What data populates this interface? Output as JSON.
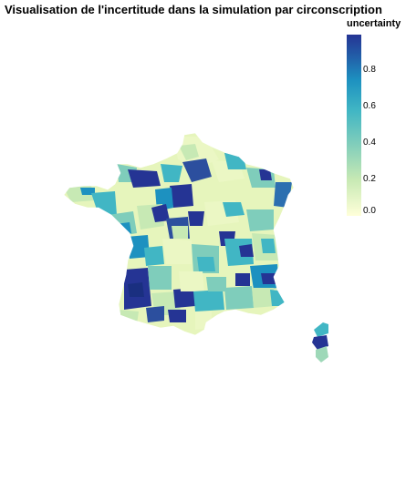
{
  "title": "Visualisation de l'incertitude dans la simulation par circonscription",
  "legend": {
    "title": "uncertainty",
    "ticks": [
      "0.8",
      "0.6",
      "0.4",
      "0.2",
      "0.0"
    ],
    "range": [
      0.0,
      0.97
    ],
    "colors": [
      "#ffffd9",
      "#c7e9b4",
      "#7fcdbb",
      "#41b6c4",
      "#1d91c0",
      "#225ea8",
      "#253494"
    ]
  },
  "map": {
    "region": "France",
    "unit": "circonscription",
    "fill_scale": "YlGnBu"
  }
}
